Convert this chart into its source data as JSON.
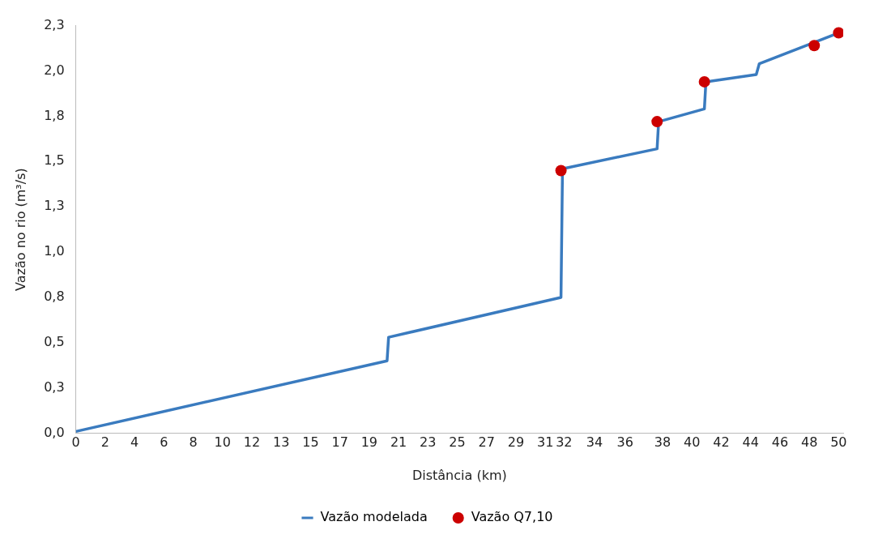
{
  "chart_data": {
    "type": "line",
    "xlabel": "Distância (km)",
    "ylabel": "Vazão no rio (m³/s)",
    "xlim": [
      0,
      50.3
    ],
    "xticks": [
      0,
      {
        "value": 1.923,
        "label": "2"
      },
      {
        "value": 3.846,
        "label": "4"
      },
      {
        "value": 5.769,
        "label": "6"
      },
      {
        "value": 7.692,
        "label": "8"
      },
      {
        "value": 9.615,
        "label": "10"
      },
      {
        "value": 11.538,
        "label": "12"
      },
      {
        "value": 13.462,
        "label": "13"
      },
      {
        "value": 15.385,
        "label": "15"
      },
      {
        "value": 17.308,
        "label": "17"
      },
      {
        "value": 19.231,
        "label": "19"
      },
      {
        "value": 21.154,
        "label": "21"
      },
      {
        "value": 23.077,
        "label": "23"
      },
      {
        "value": 25,
        "label": "25"
      },
      {
        "value": 26.923,
        "label": "27"
      },
      {
        "value": 28.846,
        "label": "29"
      },
      {
        "value": 30.769,
        "label": "31"
      },
      32,
      34,
      36,
      {
        "value": 38.462,
        "label": "38"
      },
      {
        "value": 40.385,
        "label": "40"
      },
      {
        "value": 42.308,
        "label": "42"
      },
      {
        "value": 44.231,
        "label": "44"
      },
      {
        "value": 46.154,
        "label": "46"
      },
      {
        "value": 48.077,
        "label": "48"
      },
      50
    ],
    "ylim": [
      0,
      2.25
    ],
    "yticks": [
      {
        "value": 0,
        "label": "0,0"
      },
      {
        "value": 0.25,
        "label": "0,3"
      },
      {
        "value": 0.5,
        "label": "0,5"
      },
      {
        "value": 0.75,
        "label": "0,8"
      },
      {
        "value": 1,
        "label": "1,0"
      },
      {
        "value": 1.25,
        "label": "1,3"
      },
      {
        "value": 1.5,
        "label": "1,5"
      },
      {
        "value": 1.75,
        "label": "1,8"
      },
      {
        "value": 2,
        "label": "2,0"
      },
      {
        "value": 2.25,
        "label": "2,3"
      }
    ],
    "grid": false,
    "legend": "bottom",
    "series": [
      {
        "name": "Vazão modelada",
        "color": "#3a7bbf",
        "marker": "none",
        "x": [
          0,
          20.4,
          20.5,
          31.8,
          31.9,
          38.1,
          38.2,
          41.2,
          41.3,
          44.6,
          44.8,
          50
        ],
        "values": [
          0.01,
          0.4,
          0.53,
          0.75,
          1.46,
          1.57,
          1.72,
          1.79,
          1.94,
          1.98,
          2.04,
          2.21
        ]
      },
      {
        "name": "Vazão Q7,10",
        "type": "scatter",
        "color": "#cc0000",
        "marker": "circle",
        "x": [
          31.8,
          38.1,
          41.2,
          48.4,
          50
        ],
        "values": [
          1.45,
          1.72,
          1.94,
          2.14,
          2.21
        ]
      }
    ]
  }
}
